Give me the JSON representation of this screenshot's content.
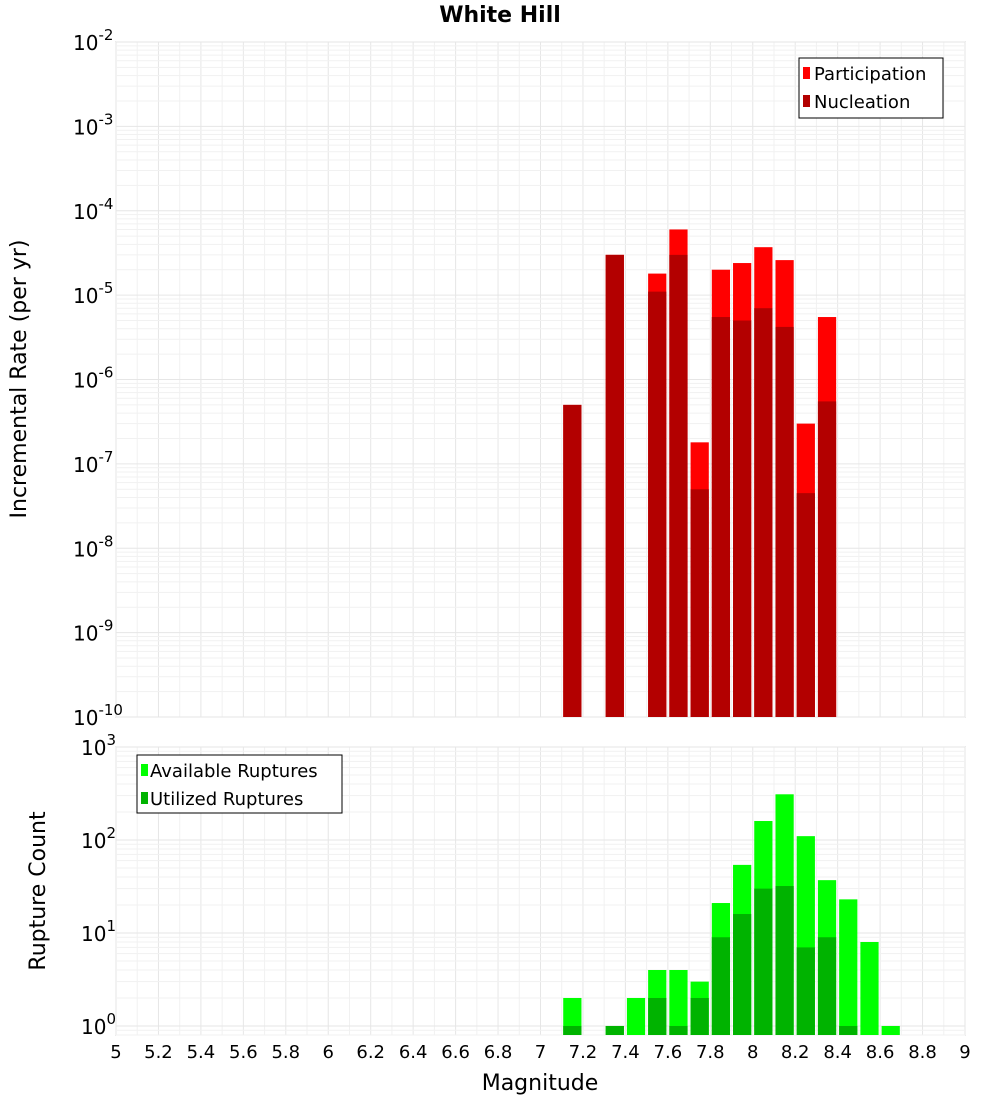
{
  "chart_data": [
    {
      "type": "bar",
      "title": "White Hill",
      "xlabel": "",
      "ylabel": "Incremental Rate (per yr)",
      "yscale": "log",
      "ylim": [
        1e-10,
        0.01
      ],
      "xlim": [
        5,
        9
      ],
      "y_tick_exponents": [
        "-10",
        "-9",
        "-8",
        "-7",
        "-6",
        "-5",
        "-4",
        "-3",
        "-2"
      ],
      "y_tick_base": "10",
      "legend": {
        "position": "top-right",
        "entries": [
          "Participation",
          "Nucleation"
        ]
      },
      "series": [
        {
          "name": "Participation",
          "color": "#ff0000",
          "x": [
            7.15,
            7.35,
            7.55,
            7.65,
            7.75,
            7.85,
            7.95,
            8.05,
            8.15,
            8.25,
            8.35
          ],
          "values": [
            5e-07,
            3e-05,
            1.8e-05,
            6e-05,
            1.8e-07,
            2e-05,
            2.4e-05,
            3.7e-05,
            2.6e-05,
            3e-07,
            5.5e-06
          ]
        },
        {
          "name": "Nucleation",
          "color": "#b30000",
          "x": [
            7.15,
            7.35,
            7.55,
            7.65,
            7.75,
            7.85,
            7.95,
            8.05,
            8.15,
            8.25,
            8.35
          ],
          "values": [
            5e-07,
            3e-05,
            1.1e-05,
            3e-05,
            5e-08,
            5.5e-06,
            5e-06,
            7e-06,
            4.2e-06,
            4.5e-08,
            5.5e-07
          ]
        }
      ]
    },
    {
      "type": "bar",
      "title": "",
      "xlabel": "Magnitude",
      "ylabel": "Rupture Count",
      "yscale": "log",
      "ylim": [
        0.8,
        1000
      ],
      "xlim": [
        5,
        9
      ],
      "x_ticks": [
        "5",
        "5.2",
        "5.4",
        "5.6",
        "5.8",
        "6",
        "6.2",
        "6.4",
        "6.6",
        "6.8",
        "7",
        "7.2",
        "7.4",
        "7.6",
        "7.8",
        "8",
        "8.2",
        "8.4",
        "8.6",
        "8.8",
        "9"
      ],
      "y_tick_exponents": [
        "0",
        "1",
        "2",
        "3"
      ],
      "y_tick_base": "10",
      "legend": {
        "position": "top-left",
        "entries": [
          "Available Ruptures",
          "Utilized Ruptures"
        ]
      },
      "series": [
        {
          "name": "Available Ruptures",
          "color": "#00ff00",
          "x": [
            7.15,
            7.35,
            7.45,
            7.55,
            7.65,
            7.75,
            7.85,
            7.95,
            8.05,
            8.15,
            8.25,
            8.35,
            8.45,
            8.55,
            8.65
          ],
          "values": [
            2,
            1,
            2,
            4,
            4,
            3,
            21,
            54,
            160,
            310,
            110,
            37,
            23,
            8,
            1
          ]
        },
        {
          "name": "Utilized Ruptures",
          "color": "#00b300",
          "x": [
            7.15,
            7.35,
            7.45,
            7.55,
            7.65,
            7.75,
            7.85,
            7.95,
            8.05,
            8.15,
            8.25,
            8.35,
            8.45,
            8.55,
            8.65
          ],
          "values": [
            1,
            1,
            0,
            2,
            1,
            2,
            9,
            16,
            30,
            32,
            7,
            9,
            1,
            0,
            0
          ]
        }
      ]
    }
  ]
}
